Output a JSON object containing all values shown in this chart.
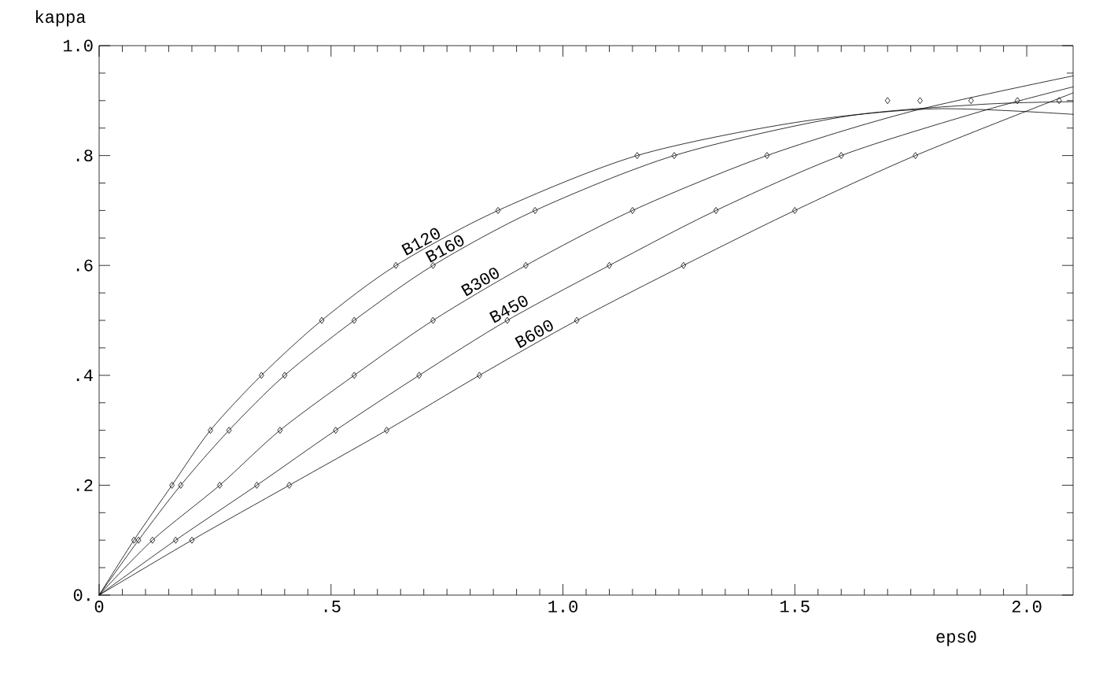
{
  "chart_data": {
    "type": "line",
    "xlabel": "eps0",
    "ylabel": "kappa",
    "xlim": [
      0,
      2.1
    ],
    "ylim": [
      0,
      1.0
    ],
    "xticks": [
      {
        "value": 0,
        "label": "0"
      },
      {
        "value": 0.5,
        "label": ".5"
      },
      {
        "value": 1.0,
        "label": "1.0"
      },
      {
        "value": 1.5,
        "label": "1.5"
      },
      {
        "value": 2.0,
        "label": "2.0"
      }
    ],
    "yticks": [
      {
        "value": 0,
        "label": "0."
      },
      {
        "value": 0.2,
        "label": ".2"
      },
      {
        "value": 0.4,
        "label": ".4"
      },
      {
        "value": 0.6,
        "label": ".6"
      },
      {
        "value": 0.8,
        "label": ".8"
      },
      {
        "value": 1.0,
        "label": "1.0"
      }
    ],
    "series": [
      {
        "name": "B120",
        "color": "#000000",
        "marker": "none",
        "x": [
          0,
          0.075,
          0.157,
          0.24,
          0.35,
          0.48,
          0.64,
          0.86,
          1.16,
          1.5,
          1.8,
          2.1
        ],
        "values": [
          0,
          0.1,
          0.2,
          0.3,
          0.4,
          0.5,
          0.6,
          0.7,
          0.8,
          0.86,
          0.885,
          0.875
        ]
      },
      {
        "name": "B160",
        "color": "#000000",
        "marker": "none",
        "x": [
          0,
          0.085,
          0.176,
          0.28,
          0.4,
          0.55,
          0.72,
          0.94,
          1.24,
          1.6,
          1.9,
          2.1
        ],
        "values": [
          0,
          0.1,
          0.2,
          0.3,
          0.4,
          0.5,
          0.6,
          0.7,
          0.8,
          0.87,
          0.893,
          0.898
        ]
      },
      {
        "name": "B300",
        "color": "#000000",
        "marker": "none",
        "x": [
          0,
          0.115,
          0.26,
          0.39,
          0.55,
          0.72,
          0.92,
          1.15,
          1.44,
          1.75,
          2.1
        ],
        "values": [
          0,
          0.1,
          0.2,
          0.3,
          0.4,
          0.5,
          0.6,
          0.7,
          0.8,
          0.88,
          0.945
        ]
      },
      {
        "name": "B450",
        "color": "#000000",
        "marker": "none",
        "x": [
          0,
          0.165,
          0.34,
          0.51,
          0.69,
          0.88,
          1.1,
          1.33,
          1.6,
          1.9,
          2.1
        ],
        "values": [
          0,
          0.1,
          0.2,
          0.3,
          0.4,
          0.5,
          0.6,
          0.7,
          0.8,
          0.88,
          0.925
        ]
      },
      {
        "name": "B600",
        "color": "#000000",
        "marker": "none",
        "x": [
          0,
          0.2,
          0.41,
          0.62,
          0.82,
          1.03,
          1.26,
          1.5,
          1.76,
          2.1
        ],
        "values": [
          0,
          0.1,
          0.2,
          0.3,
          0.4,
          0.5,
          0.6,
          0.7,
          0.8,
          0.914
        ]
      },
      {
        "type": "scatter",
        "color": "#000000",
        "marker": "diamond",
        "x": [
          0.075,
          0.157,
          0.24,
          0.35,
          0.48,
          0.64,
          0.86,
          1.16,
          1.7
        ],
        "values": [
          0.1,
          0.2,
          0.3,
          0.4,
          0.5,
          0.6,
          0.7,
          0.8,
          0.9
        ]
      },
      {
        "type": "scatter",
        "color": "#000000",
        "marker": "diamond",
        "x": [
          0.085,
          0.176,
          0.28,
          0.4,
          0.55,
          0.72,
          0.94,
          1.24,
          1.77
        ],
        "values": [
          0.1,
          0.2,
          0.3,
          0.4,
          0.5,
          0.6,
          0.7,
          0.8,
          0.9
        ]
      },
      {
        "type": "scatter",
        "color": "#000000",
        "marker": "diamond",
        "x": [
          0.115,
          0.26,
          0.39,
          0.55,
          0.72,
          0.92,
          1.15,
          1.44,
          1.88
        ],
        "values": [
          0.1,
          0.2,
          0.3,
          0.4,
          0.5,
          0.6,
          0.7,
          0.8,
          0.9
        ]
      },
      {
        "type": "scatter",
        "color": "#000000",
        "marker": "diamond",
        "x": [
          0.165,
          0.34,
          0.51,
          0.69,
          0.88,
          1.1,
          1.33,
          1.6,
          1.98
        ],
        "values": [
          0.1,
          0.2,
          0.3,
          0.4,
          0.5,
          0.6,
          0.7,
          0.8,
          0.9
        ]
      },
      {
        "type": "scatter",
        "color": "#000000",
        "marker": "diamond",
        "x": [
          0.2,
          0.41,
          0.62,
          0.82,
          1.03,
          1.26,
          1.5,
          1.76,
          2.07
        ],
        "values": [
          0.1,
          0.2,
          0.3,
          0.4,
          0.5,
          0.6,
          0.7,
          0.8,
          0.9
        ]
      }
    ]
  }
}
